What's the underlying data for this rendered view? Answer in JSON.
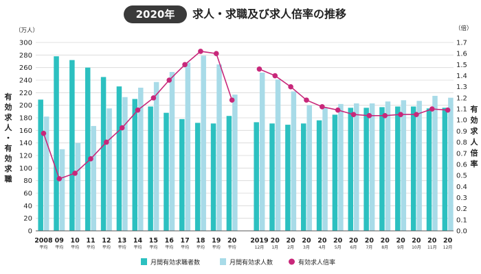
{
  "header": {
    "year_badge": "2020年",
    "title": "求人・求職及び求人倍率の推移"
  },
  "chart_data": {
    "type": "bar",
    "left_axis": {
      "unit": "（万人）",
      "label": "有効求人・有効求職",
      "ticks": [
        0,
        20,
        40,
        60,
        80,
        100,
        120,
        140,
        160,
        180,
        200,
        220,
        240,
        260,
        280,
        300
      ],
      "ylim": [
        0,
        300
      ]
    },
    "right_axis": {
      "unit": "（倍）",
      "label": "有効求人倍率",
      "ticks": [
        "0.0",
        "0.1",
        "0.2",
        "0.3",
        "0.4",
        "0.5",
        "0.6",
        "0.7",
        "0.8",
        "0.9",
        "1.0",
        "1.1",
        "1.2",
        "1.3",
        "1.4",
        "1.5",
        "1.6",
        "1.7"
      ],
      "ylim": [
        0,
        1.7
      ]
    },
    "groups": [
      {
        "categories": [
          {
            "label": "2008",
            "sub": "平均"
          },
          {
            "label": "09",
            "sub": "平均"
          },
          {
            "label": "10",
            "sub": "平均"
          },
          {
            "label": "11",
            "sub": "平均"
          },
          {
            "label": "12",
            "sub": "平均"
          },
          {
            "label": "13",
            "sub": "平均"
          },
          {
            "label": "14",
            "sub": "平均"
          },
          {
            "label": "15",
            "sub": "平均"
          },
          {
            "label": "16",
            "sub": "平均"
          },
          {
            "label": "17",
            "sub": "平均"
          },
          {
            "label": "18",
            "sub": "平均"
          },
          {
            "label": "19",
            "sub": "平均"
          },
          {
            "label": "20",
            "sub": "平均"
          }
        ],
        "seekers": [
          209,
          278,
          272,
          260,
          245,
          230,
          210,
          198,
          188,
          178,
          172,
          171,
          183
        ],
        "openings": [
          182,
          130,
          140,
          167,
          195,
          213,
          228,
          237,
          253,
          268,
          279,
          265,
          217
        ],
        "ratio": [
          0.88,
          0.47,
          0.52,
          0.65,
          0.8,
          0.93,
          1.09,
          1.2,
          1.36,
          1.5,
          1.62,
          1.6,
          1.18
        ]
      },
      {
        "categories": [
          {
            "label": "2019",
            "sub": "12月"
          },
          {
            "label": "20",
            "sub": "1月"
          },
          {
            "label": "20",
            "sub": "2月"
          },
          {
            "label": "20",
            "sub": "3月"
          },
          {
            "label": "20",
            "sub": "4月"
          },
          {
            "label": "20",
            "sub": "5月"
          },
          {
            "label": "20",
            "sub": "6月"
          },
          {
            "label": "20",
            "sub": "7月"
          },
          {
            "label": "20",
            "sub": "8月"
          },
          {
            "label": "20",
            "sub": "9月"
          },
          {
            "label": "20",
            "sub": "10月"
          },
          {
            "label": "20",
            "sub": "11月"
          },
          {
            "label": "20",
            "sub": "12月"
          }
        ],
        "seekers": [
          173,
          171,
          169,
          171,
          176,
          185,
          196,
          196,
          197,
          198,
          198,
          195,
          196
        ],
        "openings": [
          252,
          241,
          222,
          200,
          196,
          202,
          203,
          203,
          206,
          208,
          207,
          215,
          212
        ],
        "ratio": [
          1.46,
          1.4,
          1.3,
          1.18,
          1.12,
          1.09,
          1.05,
          1.04,
          1.04,
          1.05,
          1.05,
          1.1,
          1.09
        ]
      }
    ],
    "legend": [
      {
        "name": "月間有効求職者数",
        "kind": "bar",
        "color": "#2cc0c0"
      },
      {
        "name": "月間有効求人数",
        "kind": "bar",
        "color": "#a8dbe8"
      },
      {
        "name": "有効求人倍率",
        "kind": "line",
        "color": "#c8277a"
      }
    ],
    "colors": {
      "seekers": "#2cc0c0",
      "openings": "#a8dbe8",
      "ratio": "#c8277a"
    }
  }
}
